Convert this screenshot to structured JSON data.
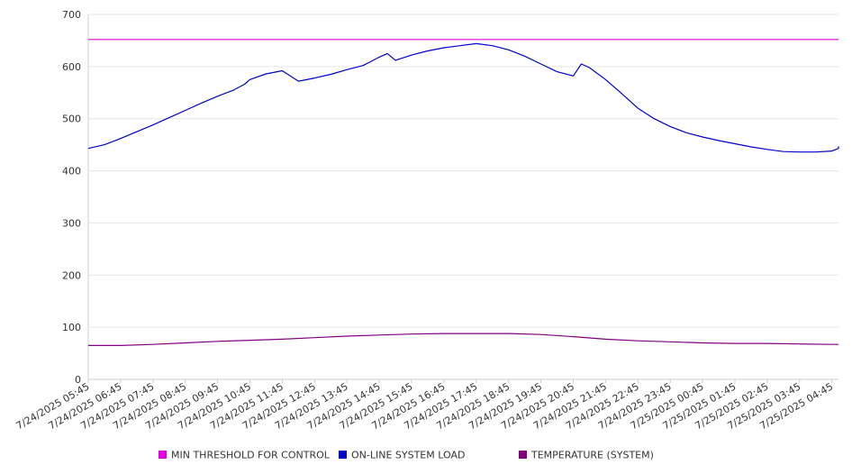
{
  "chart_data": {
    "type": "line",
    "title": "",
    "xlabel": "",
    "ylabel": "",
    "ylim": [
      0,
      700
    ],
    "y_ticks": [
      0,
      100,
      200,
      300,
      400,
      500,
      600,
      700
    ],
    "grid": true,
    "legend_position": "bottom",
    "categories": [
      "7/24/2025 05:45",
      "7/24/2025 06:45",
      "7/24/2025 07:45",
      "7/24/2025 08:45",
      "7/24/2025 09:45",
      "7/24/2025 10:45",
      "7/24/2025 11:45",
      "7/24/2025 12:45",
      "7/24/2025 13:45",
      "7/24/2025 14:45",
      "7/24/2025 15:45",
      "7/24/2025 16:45",
      "7/24/2025 17:45",
      "7/24/2025 18:45",
      "7/24/2025 19:45",
      "7/24/2025 20:45",
      "7/24/2025 21:45",
      "7/24/2025 22:45",
      "7/24/2025 23:45",
      "7/25/2025 00:45",
      "7/25/2025 01:45",
      "7/25/2025 02:45",
      "7/25/2025 03:45",
      "7/25/2025 04:45"
    ],
    "series": [
      {
        "name": "MIN THRESHOLD FOR CONTROL",
        "color": "#e000e0",
        "x": [
          "7/24/2025 05:45",
          "7/25/2025 05:30"
        ],
        "values": [
          652,
          652
        ]
      },
      {
        "name": "ON-LINE SYSTEM LOAD",
        "color": "#0000cc",
        "x": [
          "7/24/2025 05:45",
          "7/24/2025 06:15",
          "7/24/2025 06:45",
          "7/24/2025 07:15",
          "7/24/2025 07:45",
          "7/24/2025 08:15",
          "7/24/2025 08:45",
          "7/24/2025 09:15",
          "7/24/2025 09:45",
          "7/24/2025 10:15",
          "7/24/2025 10:35",
          "7/24/2025 10:45",
          "7/24/2025 11:15",
          "7/24/2025 11:45",
          "7/24/2025 12:15",
          "7/24/2025 12:45",
          "7/24/2025 13:15",
          "7/24/2025 13:45",
          "7/24/2025 14:15",
          "7/24/2025 14:30",
          "7/24/2025 14:45",
          "7/24/2025 15:00",
          "7/24/2025 15:15",
          "7/24/2025 15:45",
          "7/24/2025 16:15",
          "7/24/2025 16:45",
          "7/24/2025 17:15",
          "7/24/2025 17:45",
          "7/24/2025 18:15",
          "7/24/2025 18:45",
          "7/24/2025 19:15",
          "7/24/2025 19:45",
          "7/24/2025 20:15",
          "7/24/2025 20:45",
          "7/24/2025 21:00",
          "7/24/2025 21:15",
          "7/24/2025 21:45",
          "7/24/2025 22:15",
          "7/24/2025 22:45",
          "7/24/2025 23:15",
          "7/24/2025 23:45",
          "7/25/2025 00:15",
          "7/25/2025 00:45",
          "7/25/2025 01:15",
          "7/25/2025 01:45",
          "7/25/2025 02:15",
          "7/25/2025 02:45",
          "7/25/2025 03:15",
          "7/25/2025 03:45",
          "7/25/2025 04:15",
          "7/25/2025 04:45",
          "7/25/2025 05:15",
          "7/25/2025 05:30"
        ],
        "values": [
          443,
          450,
          462,
          475,
          488,
          502,
          516,
          530,
          543,
          555,
          566,
          575,
          586,
          592,
          572,
          578,
          585,
          594,
          602,
          610,
          618,
          625,
          612,
          622,
          630,
          636,
          640,
          644,
          640,
          632,
          620,
          605,
          590,
          582,
          605,
          598,
          575,
          548,
          520,
          500,
          485,
          473,
          465,
          458,
          452,
          446,
          441,
          437,
          436,
          436,
          438,
          443,
          447
        ]
      },
      {
        "name": "TEMPERATURE (SYSTEM)",
        "color": "#800080",
        "x": [
          "7/24/2025 05:45",
          "7/24/2025 06:45",
          "7/24/2025 07:45",
          "7/24/2025 08:45",
          "7/24/2025 09:45",
          "7/24/2025 10:45",
          "7/24/2025 11:45",
          "7/24/2025 12:45",
          "7/24/2025 13:45",
          "7/24/2025 14:45",
          "7/24/2025 15:45",
          "7/24/2025 16:45",
          "7/24/2025 17:45",
          "7/24/2025 18:45",
          "7/24/2025 19:45",
          "7/24/2025 20:45",
          "7/24/2025 21:45",
          "7/24/2025 22:45",
          "7/24/2025 23:45",
          "7/25/2025 00:45",
          "7/25/2025 01:45",
          "7/25/2025 02:45",
          "7/25/2025 03:45",
          "7/25/2025 04:45",
          "7/25/2025 05:30"
        ],
        "values": [
          65,
          65,
          67,
          70,
          73,
          75,
          77,
          80,
          83,
          85,
          87,
          88,
          88,
          88,
          86,
          82,
          77,
          74,
          72,
          70,
          69,
          69,
          68,
          67,
          67
        ]
      }
    ]
  }
}
